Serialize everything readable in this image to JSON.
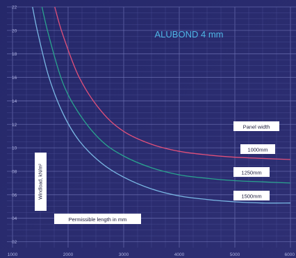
{
  "chart_data": {
    "type": "line",
    "title": "ALUBOND 4 mm",
    "xlabel": "Permissible length in mm",
    "ylabel": "Windload, kN/m²",
    "xlim": [
      900,
      6100
    ],
    "ylim": [
      1.5,
      22
    ],
    "x_ticks": [
      1000,
      2000,
      3000,
      4000,
      5000,
      6000
    ],
    "x_tick_labels": [
      "1000",
      "2000",
      "3000",
      "4000",
      "5000",
      "6000"
    ],
    "y_ticks": [
      2,
      4,
      6,
      8,
      10,
      12,
      14,
      16,
      18,
      20,
      22
    ],
    "y_tick_labels": [
      "02",
      "04",
      "06",
      "08",
      "10",
      "12",
      "14",
      "16",
      "18",
      "20",
      "22"
    ],
    "grid": true,
    "legend_title": "Panel width",
    "series": [
      {
        "name": "1000mm",
        "color": "#e0507a",
        "x": [
          1760,
          1900,
          2200,
          2600,
          3000,
          3500,
          4000,
          4500,
          5000,
          5500,
          6000
        ],
        "y": [
          22,
          19.7,
          16.0,
          13.1,
          11.4,
          10.3,
          9.7,
          9.4,
          9.2,
          9.1,
          9.0
        ]
      },
      {
        "name": "1250mm",
        "color": "#2aa38e",
        "x": [
          1530,
          1650,
          1900,
          2200,
          2600,
          3000,
          3500,
          4000,
          4500,
          5000,
          5500,
          6000
        ],
        "y": [
          22,
          19.6,
          15.6,
          12.9,
          10.6,
          9.3,
          8.3,
          7.7,
          7.4,
          7.2,
          7.1,
          7.0
        ]
      },
      {
        "name": "1500mm",
        "color": "#7ab8e4",
        "x": [
          1360,
          1450,
          1650,
          1900,
          2200,
          2600,
          3000,
          3500,
          4000,
          4500,
          5000,
          5500,
          6000
        ],
        "y": [
          22,
          19.9,
          16.1,
          13.0,
          10.6,
          8.7,
          7.5,
          6.5,
          5.9,
          5.6,
          5.4,
          5.3,
          5.3
        ]
      }
    ]
  }
}
